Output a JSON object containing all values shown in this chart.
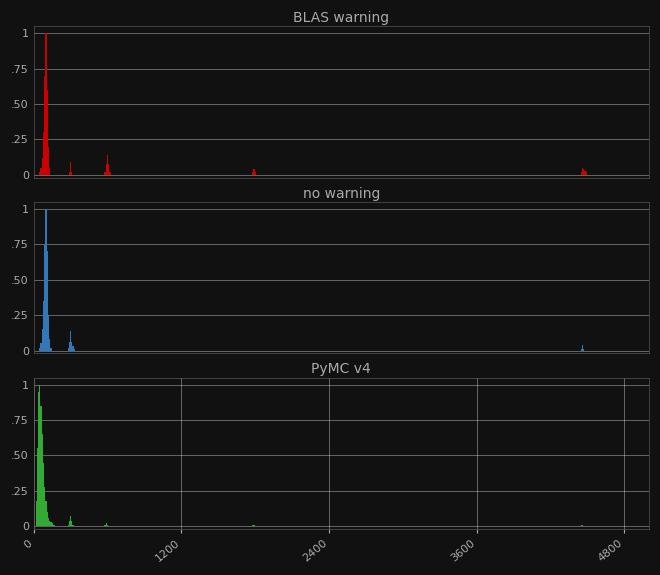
{
  "titles": [
    "BLAS warning",
    "no warning",
    "PyMC v4"
  ],
  "colors": [
    "#cc0000",
    "#3377bb",
    "#33aa33"
  ],
  "xlim": [
    0,
    5000
  ],
  "ylim": [
    -0.02,
    1.05
  ],
  "yticks": [
    0,
    0.25,
    0.5,
    0.75,
    1
  ],
  "ytick_labels": [
    "0",
    ".25",
    ".50",
    ".75",
    "1"
  ],
  "xticks": [
    0,
    1200,
    2400,
    3600,
    4800
  ],
  "xtick_labels": [
    "0",
    "1200",
    "2400",
    "3600",
    "4800"
  ],
  "background_color": "#111111",
  "grid_color": "#888888",
  "text_color": "#aaaaaa",
  "title_fontsize": 10,
  "tick_fontsize": 8,
  "figsize": [
    6.6,
    5.75
  ],
  "dpi": 100,
  "blas_bins": [
    50,
    60,
    70,
    80,
    90,
    100,
    110,
    120,
    130,
    290,
    300,
    310,
    580,
    590,
    600,
    610,
    620,
    1780,
    1790,
    1800,
    4450,
    4460,
    4470,
    4480,
    4490
  ],
  "blas_heights": [
    0.02,
    0.05,
    0.12,
    0.3,
    0.7,
    1.0,
    0.6,
    0.2,
    0.05,
    0.02,
    0.09,
    0.02,
    0.02,
    0.08,
    0.14,
    0.08,
    0.02,
    0.02,
    0.04,
    0.02,
    0.02,
    0.05,
    0.04,
    0.03,
    0.02
  ],
  "nowarning_bins": [
    50,
    60,
    70,
    80,
    90,
    100,
    110,
    120,
    130,
    140,
    280,
    290,
    300,
    310,
    320,
    330,
    4450,
    4460,
    4470
  ],
  "nowarning_heights": [
    0.02,
    0.05,
    0.15,
    0.35,
    0.75,
    1.0,
    0.7,
    0.25,
    0.08,
    0.02,
    0.02,
    0.06,
    0.14,
    0.06,
    0.03,
    0.01,
    0.01,
    0.04,
    0.01
  ],
  "pymc_bins": [
    20,
    30,
    40,
    50,
    60,
    70,
    80,
    90,
    100,
    110,
    120,
    130,
    140,
    150,
    160,
    170,
    280,
    290,
    300,
    310,
    320,
    580,
    590,
    600,
    1780,
    1790,
    4450,
    4460
  ],
  "pymc_heights": [
    0.18,
    0.55,
    0.95,
    1.0,
    0.85,
    0.65,
    0.45,
    0.28,
    0.18,
    0.1,
    0.06,
    0.04,
    0.03,
    0.02,
    0.01,
    0.01,
    0.01,
    0.04,
    0.07,
    0.04,
    0.01,
    0.01,
    0.02,
    0.01,
    0.01,
    0.01,
    0.01,
    0.01
  ]
}
